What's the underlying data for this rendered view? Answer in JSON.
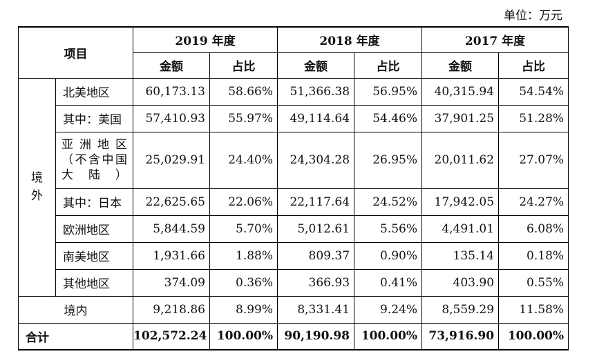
{
  "unit": "单位：万元",
  "header": {
    "item": "项目",
    "years": [
      "2019 年度",
      "2018 年度",
      "2017 年度"
    ],
    "amount": "金额",
    "ratio": "占比"
  },
  "overseas_label": "境外",
  "overseas_label_chars": [
    "境",
    "外"
  ],
  "rows": [
    {
      "name": "北美地区",
      "v2019": "60,173.13",
      "p2019": "58.66%",
      "v2018": "51,366.38",
      "p2018": "56.95%",
      "v2017": "40,315.94",
      "p2017": "54.54%"
    },
    {
      "name": "其中：美国",
      "v2019": "57,410.93",
      "p2019": "55.97%",
      "v2018": "49,114.64",
      "p2018": "54.46%",
      "v2017": "37,901.25",
      "p2017": "51.28%"
    },
    {
      "name": "亚洲地区（不含中国大陆）",
      "v2019": "25,029.91",
      "p2019": "24.40%",
      "v2018": "24,304.28",
      "p2018": "26.95%",
      "v2017": "20,011.62",
      "p2017": "27.07%"
    },
    {
      "name": "其中：日本",
      "v2019": "22,625.65",
      "p2019": "22.06%",
      "v2018": "22,117.64",
      "p2018": "24.52%",
      "v2017": "17,942.05",
      "p2017": "24.27%"
    },
    {
      "name": "欧洲地区",
      "v2019": "5,844.59",
      "p2019": "5.70%",
      "v2018": "5,012.61",
      "p2018": "5.56%",
      "v2017": "4,491.01",
      "p2017": "6.08%"
    },
    {
      "name": "南美地区",
      "v2019": "1,931.66",
      "p2019": "1.88%",
      "v2018": "809.37",
      "p2018": "0.90%",
      "v2017": "135.14",
      "p2017": "0.18%"
    },
    {
      "name": "其他地区",
      "v2019": "374.09",
      "p2019": "0.36%",
      "v2018": "366.93",
      "p2018": "0.41%",
      "v2017": "403.90",
      "p2017": "0.55%"
    }
  ],
  "domestic": {
    "name": "境内",
    "v2019": "9,218.86",
    "p2019": "8.99%",
    "v2018": "8,331.41",
    "p2018": "9.24%",
    "v2017": "8,559.29",
    "p2017": "11.58%"
  },
  "total": {
    "name": "合计",
    "v2019": "102,572.24",
    "p2019": "100.00%",
    "v2018": "90,190.98",
    "p2018": "100.00%",
    "v2017": "73,916.90",
    "p2017": "100.00%"
  }
}
